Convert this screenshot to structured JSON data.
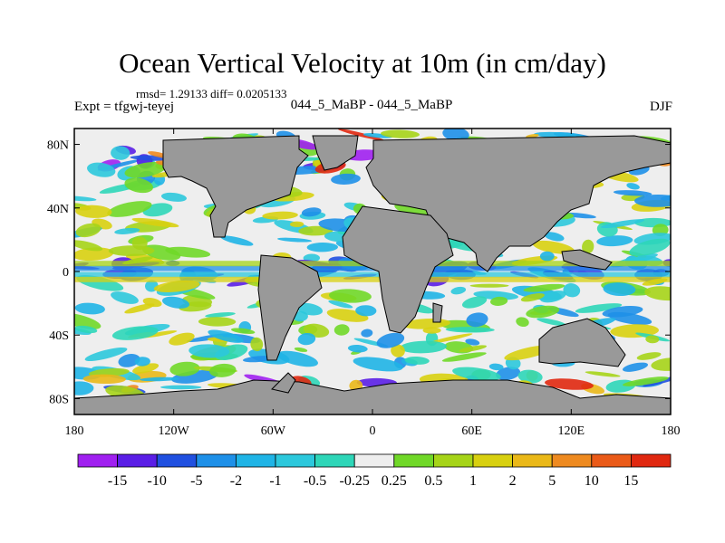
{
  "title": "Ocean Vertical Velocity at 10m (in cm/day)",
  "stats": "rmsd= 1.29133  diff= 0.0205133",
  "expt": "Expt = tfgwj-teyej",
  "subtitle": "044_5_MaBP - 044_5_MaBP",
  "season": "DJF",
  "colors": {
    "land": "#999999",
    "ocean_zero": "#eeeeee"
  },
  "lat_ticks": [
    "80N",
    "40N",
    "0",
    "40S",
    "80S"
  ],
  "lon_ticks": [
    "180",
    "120W",
    "60W",
    "0",
    "60E",
    "120E",
    "180"
  ],
  "colorbar": {
    "labels": [
      "-15",
      "-10",
      "-5",
      "-2",
      "-1",
      "-0.5",
      "-0.25",
      "0.25",
      "0.5",
      "1",
      "2",
      "5",
      "10",
      "15"
    ],
    "colors": [
      "#a020f0",
      "#5a1ee6",
      "#2050e0",
      "#1e90e8",
      "#1fb4e6",
      "#2cc8dc",
      "#2ed6b8",
      "#eeeeee",
      "#70d828",
      "#a6d418",
      "#d8d010",
      "#eab818",
      "#ee8a20",
      "#ea5a18",
      "#e02810"
    ]
  },
  "chart_data": {
    "type": "heatmap",
    "title": "Ocean Vertical Velocity at 10m (in cm/day)",
    "x": "longitude",
    "xlim": [
      -180,
      180
    ],
    "y": "latitude",
    "ylim": [
      -90,
      90
    ],
    "x_ticks": [
      "180",
      "120W",
      "60W",
      "0",
      "60E",
      "120E",
      "180"
    ],
    "y_ticks": [
      "80N",
      "40N",
      "0",
      "40S",
      "80S"
    ],
    "levels": [
      -15,
      -10,
      -5,
      -2,
      -1,
      -0.5,
      -0.25,
      0.25,
      0.5,
      1,
      2,
      5,
      10,
      15
    ],
    "units": "cm/day"
  }
}
